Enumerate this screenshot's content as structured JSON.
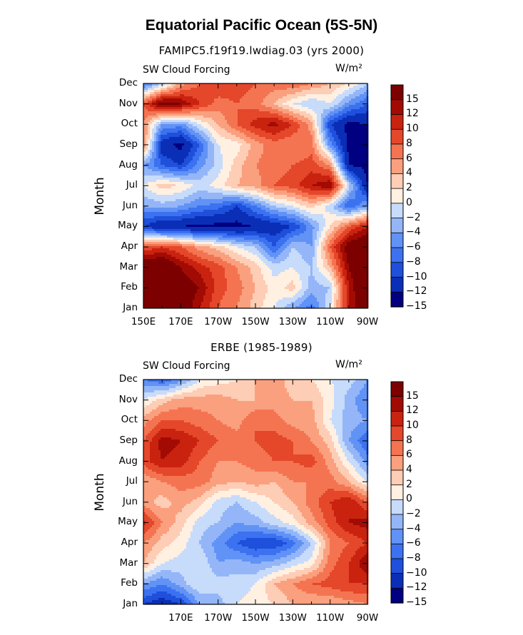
{
  "title": "Equatorial Pacific Ocean (5S-5N)",
  "colors": [
    "#000080",
    "#0a2fb6",
    "#1e50dc",
    "#3c72f0",
    "#6192f5",
    "#94b6f8",
    "#c7dbfb",
    "#fff0e2",
    "#fdcdb5",
    "#faa07e",
    "#f47452",
    "#e4472a",
    "#c92310",
    "#a20b04",
    "#7c0000"
  ],
  "colorbar_labels": [
    "15",
    "12",
    "10",
    "8",
    "6",
    "4",
    "2",
    "0",
    "−2",
    "−4",
    "−6",
    "−8",
    "−10",
    "−12",
    "−15"
  ],
  "chart_data": [
    {
      "type": "heatmap",
      "title": "FAMIPC5.f19f19.lwdiag.03 (yrs 2000)",
      "left_label": "SW Cloud Forcing",
      "right_label": "W/m²",
      "xlabel": "",
      "ylabel": "Month",
      "x_tick_labels": [
        "150E",
        "170E",
        "170W",
        "150W",
        "130W",
        "110W",
        "90W"
      ],
      "y_categories": [
        "Jan",
        "Feb",
        "Mar",
        "Apr",
        "May",
        "Jun",
        "Jul",
        "Aug",
        "Sep",
        "Oct",
        "Nov",
        "Dec"
      ],
      "x_longitudes_E": [
        150,
        160,
        170,
        180,
        190,
        200,
        210,
        220,
        230,
        240,
        250,
        260,
        270
      ],
      "levels": [
        -15,
        -12,
        -10,
        -8,
        -6,
        -4,
        -2,
        0,
        2,
        4,
        6,
        8,
        10,
        12,
        15
      ],
      "z": [
        [
          14,
          16,
          15,
          10,
          6,
          4,
          1,
          -2,
          -6,
          -9,
          -2,
          10,
          16
        ],
        [
          15,
          16,
          14,
          12,
          7,
          5,
          2,
          -1,
          1,
          -5,
          -4,
          10,
          17
        ],
        [
          16,
          16,
          12,
          9,
          7,
          4,
          1,
          -3,
          -2,
          -4,
          2,
          12,
          17
        ],
        [
          6,
          8,
          6,
          3,
          1,
          -2,
          -4,
          -10,
          -4,
          -6,
          6,
          14,
          16
        ],
        [
          -12,
          -15,
          -15,
          -16,
          -16,
          -16,
          -15,
          -14,
          -12,
          -7,
          0,
          6,
          10
        ],
        [
          -6,
          -5,
          -6,
          -8,
          -9,
          -12,
          -8,
          -4,
          -2,
          1,
          -3,
          -10,
          -6
        ],
        [
          -2,
          1,
          0,
          -3,
          -1,
          2,
          3,
          6,
          7,
          10,
          12,
          -3,
          -15
        ],
        [
          -6,
          -10,
          -12,
          -7,
          -3,
          1,
          4,
          5,
          6,
          7,
          4,
          -15,
          -16
        ],
        [
          5,
          -14,
          -16,
          -10,
          -2,
          -1,
          3,
          5,
          4,
          5,
          -7,
          -16,
          -16
        ],
        [
          4,
          -6,
          -7,
          -2,
          2,
          6,
          9,
          11,
          8,
          3,
          -12,
          -16,
          -15
        ],
        [
          6,
          14,
          12,
          8,
          5,
          6,
          5,
          2,
          -2,
          -4,
          -2,
          -7,
          -10
        ],
        [
          -9,
          -4,
          3,
          6,
          8,
          7,
          6,
          5,
          6,
          4,
          2,
          0,
          -4
        ]
      ]
    },
    {
      "type": "heatmap",
      "title": "ERBE (1985-1989)",
      "left_label": "SW Cloud Forcing",
      "right_label": "W/m²",
      "xlabel": "",
      "ylabel": "Month",
      "x_tick_labels": [
        "170E",
        "170W",
        "150W",
        "130W",
        "110W",
        "90W"
      ],
      "y_categories": [
        "Jan",
        "Feb",
        "Mar",
        "Apr",
        "May",
        "Jun",
        "Jul",
        "Aug",
        "Sep",
        "Oct",
        "Nov",
        "Dec"
      ],
      "x_longitudes_E": [
        150,
        160,
        170,
        180,
        190,
        200,
        210,
        220,
        230,
        240,
        250,
        260,
        270
      ],
      "levels": [
        -15,
        -12,
        -10,
        -8,
        -6,
        -4,
        -2,
        0,
        2,
        4,
        6,
        8,
        10,
        12,
        15
      ],
      "z": [
        [
          -12,
          -14,
          -12,
          -6,
          -5,
          -2,
          -1,
          0,
          2,
          2,
          2,
          3,
          4
        ],
        [
          -6,
          -8,
          -5,
          -2,
          -3,
          -3,
          -2,
          2,
          4,
          6,
          7,
          8,
          8
        ],
        [
          2,
          -2,
          -3,
          -2,
          -6,
          -5,
          -6,
          -5,
          -3,
          -1,
          5,
          8,
          12
        ],
        [
          4,
          1,
          -1,
          -4,
          -7,
          -10,
          -12,
          -12,
          -9,
          -4,
          4,
          6,
          8
        ],
        [
          9,
          4,
          1,
          -3,
          -4,
          -6,
          -5,
          -3,
          -1,
          3,
          7,
          10,
          11
        ],
        [
          3,
          1,
          3,
          1,
          -3,
          -4,
          -2,
          0,
          2,
          5,
          8,
          10,
          6
        ],
        [
          2,
          4,
          5,
          5,
          3,
          2,
          3,
          2,
          4,
          4,
          5,
          2,
          -2
        ],
        [
          7,
          10,
          9,
          6,
          4,
          4,
          5,
          6,
          6,
          7,
          3,
          -2,
          -7
        ],
        [
          6,
          11,
          10,
          8,
          6,
          5,
          6,
          7,
          6,
          4,
          1,
          -6,
          -10
        ],
        [
          3,
          6,
          6,
          5,
          4,
          3,
          6,
          5,
          3,
          3,
          -2,
          -5,
          -6
        ],
        [
          -2,
          1,
          3,
          3,
          3,
          2,
          2,
          3,
          2,
          2,
          -1,
          -5,
          -8
        ],
        [
          -8,
          -10,
          -7,
          -2,
          -1,
          0,
          2,
          3,
          1,
          0,
          -2,
          -3,
          -6
        ]
      ]
    }
  ]
}
